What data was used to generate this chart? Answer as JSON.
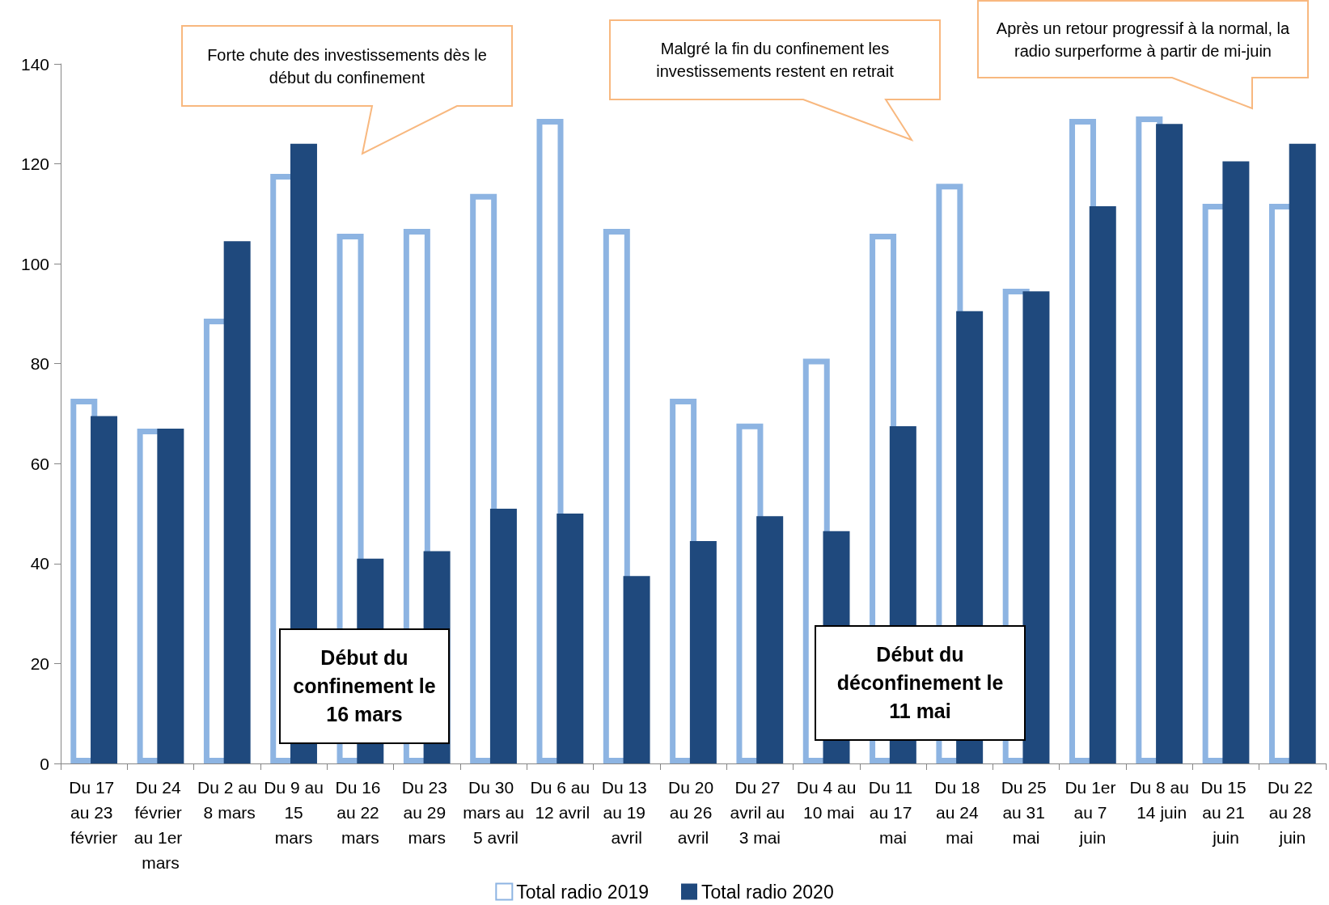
{
  "chart_data": {
    "type": "bar",
    "categories": [
      "Du 17 au 23 février",
      "Du 24 février au 1er mars",
      "Du 2 au 8 mars",
      "Du 9 au 15 mars",
      "Du 16 au 22 mars",
      "Du 23 au 29 mars",
      "Du 30 mars au 5 avril",
      "Du 6 au 12 avril",
      "Du 13 au 19 avril",
      "Du 20 au 26 avril",
      "Du 27 avril au 3 mai",
      "Du 4 au 10 mai",
      "Du 11 au 17 mai",
      "Du 18 au 24 mai",
      "Du 25 au 31 mai",
      "Du 1er au 7 juin",
      "Du 8 au 14 juin",
      "Du 15 au 21 juin",
      "Du 22 au 28 juin"
    ],
    "series": [
      {
        "name": "Total radio 2019",
        "color": "#8db4e2",
        "values": [
          73,
          67,
          89,
          118,
          106,
          107,
          114,
          129,
          107,
          73,
          68,
          81,
          106,
          116,
          95,
          129,
          129.5,
          112,
          112
        ]
      },
      {
        "name": "Total radio 2020",
        "color": "#1f497d",
        "values": [
          69.5,
          67,
          104.5,
          124,
          41,
          42.5,
          51,
          50,
          37.5,
          44.5,
          49.5,
          46.5,
          67.5,
          90.5,
          94.5,
          111.5,
          128,
          120.5,
          124
        ]
      }
    ],
    "ylim": [
      0,
      140
    ],
    "yticks": [
      0,
      20,
      40,
      60,
      80,
      100,
      120,
      140
    ],
    "grid": false,
    "legend": "bottom",
    "annotations": [
      "Forte chute des investissements dès le début du confinement",
      "Malgré la fin du confinement les investissements restent en retrait",
      "Après un retour progressif à la normal, la radio surperforme à partir de mi-juin",
      "Début du confinement le 16  mars",
      "Début du déconfinement le 11 mai"
    ]
  }
}
